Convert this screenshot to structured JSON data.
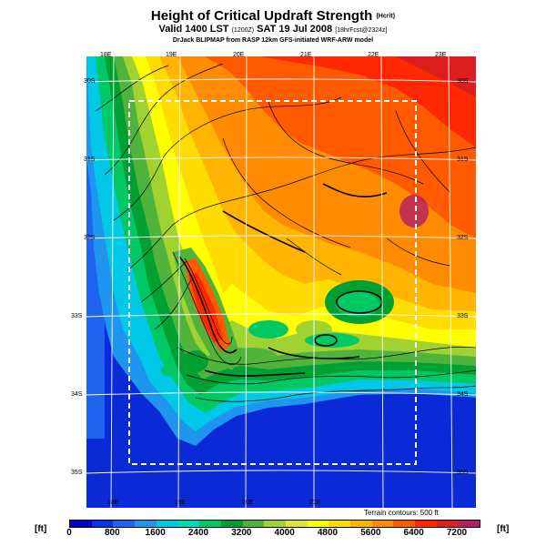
{
  "header": {
    "title": "Height of Critical Updraft Strength",
    "title_unit": "(Hcrit)",
    "valid": "Valid 1400 LST",
    "valid_z": "(1200Z)",
    "date": "SAT 19 Jul 2008",
    "forecast": "[18hrFcst@2324z]",
    "source": "DrJack BLIPMAP from RASP 12km GFS-initiated WRF-ARW model"
  },
  "map": {
    "lon_labels_top": [
      "18E",
      "19E",
      "20E",
      "21E",
      "22E",
      "23E"
    ],
    "lon_labels_bottom": [
      "18E",
      "19E",
      "20E",
      "21E"
    ],
    "lat_labels_left": [
      "30S",
      "31S",
      "32S",
      "33S",
      "34S",
      "35S"
    ],
    "lat_labels_right": [
      "30S",
      "31S",
      "32S",
      "33S",
      "34S",
      "35S"
    ],
    "contour_note": "Terrain contours: 500 ft"
  },
  "colorbar": {
    "unit_left": "[ft]",
    "unit_right": "[ft]",
    "ticks": [
      "0",
      "800",
      "1600",
      "2400",
      "3200",
      "4000",
      "4800",
      "5600",
      "6400",
      "7200"
    ],
    "colors": [
      "#0000c8",
      "#0a32e6",
      "#1e64f0",
      "#1e96f0",
      "#00c8e6",
      "#00dcb4",
      "#00c864",
      "#00a032",
      "#50b43c",
      "#a0d232",
      "#dce632",
      "#ffff00",
      "#ffdc00",
      "#ffb400",
      "#ff8c00",
      "#ff5a00",
      "#ff2800",
      "#dc1e1e",
      "#b41e64"
    ]
  }
}
